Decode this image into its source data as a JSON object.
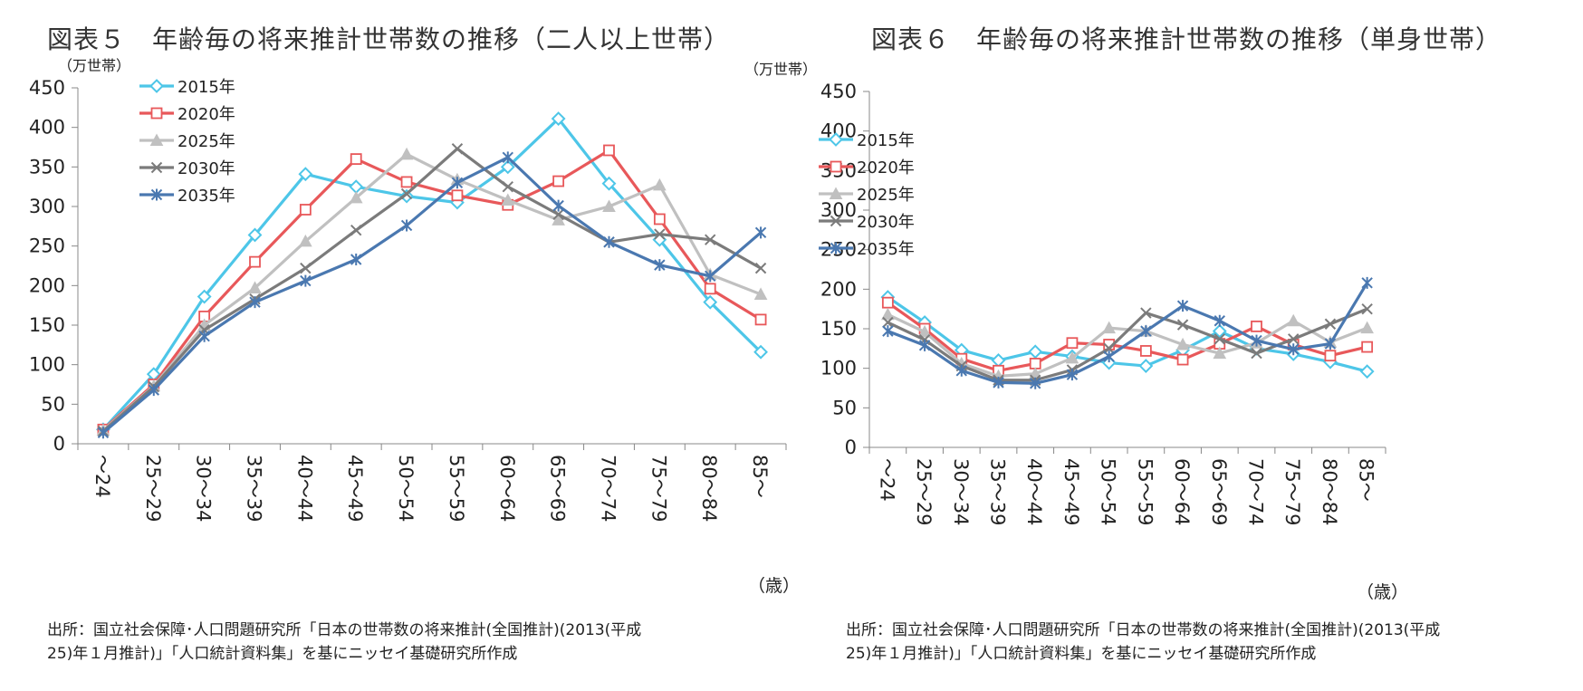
{
  "chart_data": [
    {
      "type": "line",
      "title": "図表５　年齢毎の将来推計世帯数の推移（二人以上世帯）",
      "ylabel": "（万世帯）",
      "xlabel": "（歳）",
      "ylim": [
        0,
        450
      ],
      "yticks": [
        "0",
        "50",
        "100",
        "150",
        "200",
        "250",
        "300",
        "350",
        "400",
        "450"
      ],
      "categories": [
        "～24",
        "25～29",
        "30～34",
        "35～39",
        "40～44",
        "45～49",
        "50～54",
        "55～59",
        "60～64",
        "65～69",
        "70～74",
        "75～79",
        "80～84",
        "85～"
      ],
      "legend_position": "top-left",
      "series": [
        {
          "name": "2015年",
          "color": "#4dc6e8",
          "marker": "diamond",
          "values": [
            18,
            88,
            186,
            264,
            341,
            325,
            313,
            305,
            350,
            411,
            329,
            258,
            179,
            116
          ]
        },
        {
          "name": "2020年",
          "color": "#e8585a",
          "marker": "square",
          "values": [
            18,
            75,
            161,
            230,
            296,
            360,
            331,
            314,
            302,
            332,
            371,
            284,
            196,
            157
          ]
        },
        {
          "name": "2025年",
          "color": "#c0c0c0",
          "marker": "triangle",
          "values": [
            17,
            73,
            150,
            197,
            256,
            311,
            366,
            334,
            308,
            283,
            300,
            327,
            214,
            189
          ]
        },
        {
          "name": "2030年",
          "color": "#7b7b7b",
          "marker": "cross",
          "values": [
            16,
            72,
            144,
            183,
            222,
            270,
            316,
            373,
            325,
            290,
            255,
            265,
            258,
            222
          ]
        },
        {
          "name": "2035年",
          "color": "#4a78b0",
          "marker": "star",
          "values": [
            14,
            68,
            136,
            179,
            206,
            233,
            276,
            330,
            362,
            301,
            255,
            226,
            212,
            267
          ]
        }
      ],
      "source": [
        "出所：国立社会保障･人口問題研究所「日本の世帯数の将来推計(全国推計)(2013(平成",
        "25)年１月推計)」「人口統計資料集」を基にニッセイ基礎研究所作成"
      ]
    },
    {
      "type": "line",
      "title": "図表６　年齢毎の将来推計世帯数の推移（単身世帯）",
      "ylabel": "（万世帯）",
      "xlabel": "（歳）",
      "ylim": [
        0,
        450
      ],
      "yticks": [
        "0",
        "50",
        "100",
        "150",
        "200",
        "250",
        "300",
        "350",
        "400",
        "450"
      ],
      "categories": [
        "～24",
        "25～29",
        "30～34",
        "35～39",
        "40～44",
        "45～49",
        "50～54",
        "55～59",
        "60～64",
        "65～69",
        "70～74",
        "75～79",
        "80～84",
        "85～"
      ],
      "legend_position": "top-left",
      "series": [
        {
          "name": "2015年",
          "color": "#4dc6e8",
          "marker": "diamond",
          "values": [
            190,
            158,
            123,
            110,
            121,
            115,
            107,
            103,
            123,
            147,
            125,
            118,
            108,
            96
          ]
        },
        {
          "name": "2020年",
          "color": "#e8585a",
          "marker": "square",
          "values": [
            183,
            150,
            112,
            97,
            106,
            132,
            130,
            122,
            111,
            131,
            153,
            130,
            116,
            127
          ]
        },
        {
          "name": "2025年",
          "color": "#c0c0c0",
          "marker": "triangle",
          "values": [
            168,
            146,
            106,
            90,
            93,
            113,
            151,
            147,
            130,
            119,
            132,
            160,
            133,
            151
          ]
        },
        {
          "name": "2030年",
          "color": "#7b7b7b",
          "marker": "cross",
          "values": [
            158,
            136,
            103,
            85,
            85,
            98,
            125,
            170,
            155,
            137,
            119,
            137,
            156,
            175
          ]
        },
        {
          "name": "2035年",
          "color": "#4a78b0",
          "marker": "star",
          "values": [
            147,
            129,
            97,
            82,
            81,
            92,
            115,
            147,
            179,
            160,
            135,
            124,
            131,
            208
          ]
        }
      ],
      "source": [
        "出所：国立社会保障･人口問題研究所「日本の世帯数の将来推計(全国推計)(2013(平成",
        "25)年１月推計)」「人口統計資料集」を基にニッセイ基礎研究所作成"
      ]
    }
  ]
}
